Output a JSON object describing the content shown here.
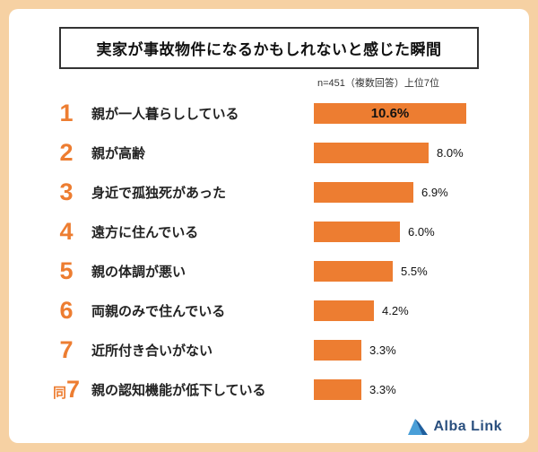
{
  "page": {
    "title": "実家が事故物件になるかもしれないと感じた瞬間",
    "note": "n=451（複数回答）上位7位"
  },
  "logo": {
    "text": "Alba Link"
  },
  "colors": {
    "background": "#f6d1a3",
    "card": "#ffffff",
    "bar": "#ed7d31",
    "rank_number": "#ed7d31",
    "logo_blue_dark": "#1e5f9e",
    "logo_blue_light": "#4a9fd8",
    "text": "#111111"
  },
  "chart_data": {
    "type": "bar",
    "orientation": "horizontal",
    "title": "実家が事故物件になるかもしれないと感じた瞬間",
    "note": "n=451（複数回答）上位7位",
    "unit": "%",
    "max_value": 10.6,
    "xlim": [
      0,
      10.6
    ],
    "categories": [
      "親が一人暮らししている",
      "親が高齢",
      "身近で孤独死があった",
      "遠方に住んでいる",
      "親の体調が悪い",
      "両親のみで住んでいる",
      "近所付き合いがない",
      "親の認知機能が低下している"
    ],
    "values": [
      10.6,
      8.0,
      6.9,
      6.0,
      5.5,
      4.2,
      3.3,
      3.3
    ],
    "rows": [
      {
        "rank": "1",
        "label": "親が一人暮らししている",
        "value": 10.6,
        "value_label": "10.6%",
        "value_inside": true
      },
      {
        "rank": "2",
        "label": "親が高齢",
        "value": 8.0,
        "value_label": "8.0%"
      },
      {
        "rank": "3",
        "label": "身近で孤独死があった",
        "value": 6.9,
        "value_label": "6.9%"
      },
      {
        "rank": "4",
        "label": "遠方に住んでいる",
        "value": 6.0,
        "value_label": "6.0%"
      },
      {
        "rank": "5",
        "label": "親の体調が悪い",
        "value": 5.5,
        "value_label": "5.5%"
      },
      {
        "rank": "6",
        "label": "両親のみで住んでいる",
        "value": 4.2,
        "value_label": "4.2%"
      },
      {
        "rank": "7",
        "label": "近所付き合いがない",
        "value": 3.3,
        "value_label": "3.3%"
      },
      {
        "rank_prefix": "同",
        "rank": "7",
        "label": "親の認知機能が低下している",
        "value": 3.3,
        "value_label": "3.3%"
      }
    ]
  }
}
